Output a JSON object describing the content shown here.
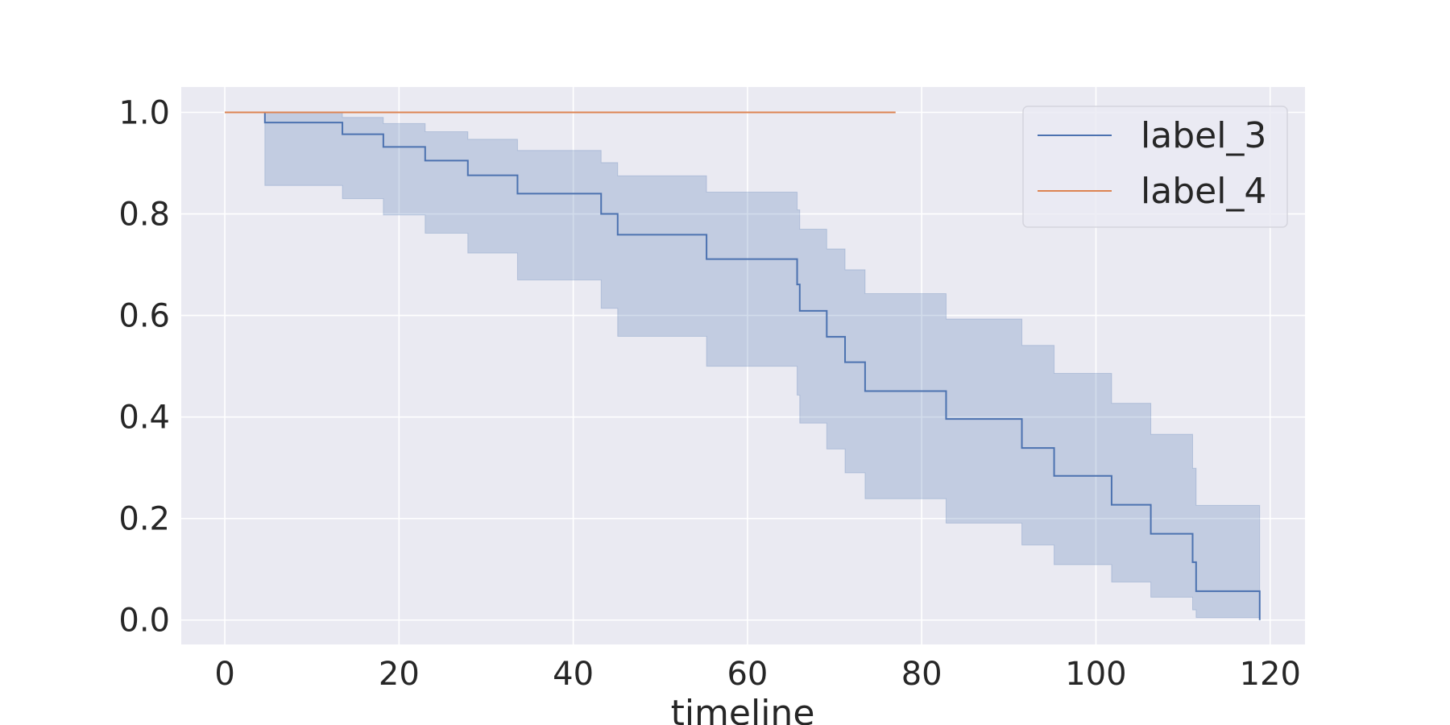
{
  "chart_data": {
    "type": "line",
    "subtype": "kaplan-meier step survival curve with confidence band",
    "title": "",
    "xlabel": "timeline",
    "ylabel": "",
    "xlim": [
      -5,
      124
    ],
    "ylim": [
      -0.048,
      1.05
    ],
    "x_ticks": [
      0,
      20,
      40,
      60,
      80,
      100,
      120
    ],
    "y_ticks": [
      0.0,
      0.2,
      0.4,
      0.6,
      0.8,
      1.0
    ],
    "y_tick_labels": [
      "0.0",
      "0.2",
      "0.4",
      "0.6",
      "0.8",
      "1.0"
    ],
    "grid": true,
    "legend_position": "top-right",
    "colors": {
      "background": "#eaeaf2",
      "grid": "#ffffff",
      "label_3": "#4c72b0",
      "label_4": "#dd8452"
    },
    "series": [
      {
        "name": "label_3",
        "drawstyle": "steps-post",
        "x": [
          0,
          4.6,
          13.5,
          18.2,
          23.0,
          27.9,
          33.6,
          43.2,
          45.1,
          55.3,
          65.7,
          66.0,
          69.1,
          71.2,
          73.5,
          82.8,
          91.5,
          95.2,
          101.8,
          106.3,
          111.1,
          111.5,
          118.8
        ],
        "y": [
          1.0,
          0.98,
          0.957,
          0.932,
          0.905,
          0.876,
          0.84,
          0.8,
          0.759,
          0.711,
          0.661,
          0.609,
          0.558,
          0.508,
          0.451,
          0.396,
          0.339,
          0.284,
          0.227,
          0.17,
          0.114,
          0.057,
          0.0
        ],
        "ci_upper": [
          1.0,
          1.0,
          0.99,
          0.978,
          0.962,
          0.947,
          0.925,
          0.901,
          0.875,
          0.843,
          0.808,
          0.77,
          0.731,
          0.69,
          0.643,
          0.593,
          0.541,
          0.486,
          0.427,
          0.366,
          0.299,
          0.226,
          0.226
        ],
        "ci_lower": [
          1.0,
          0.856,
          0.83,
          0.798,
          0.762,
          0.723,
          0.67,
          0.614,
          0.559,
          0.5,
          0.443,
          0.388,
          0.337,
          0.29,
          0.239,
          0.191,
          0.148,
          0.109,
          0.075,
          0.045,
          0.02,
          0.005,
          0.005
        ]
      },
      {
        "name": "label_4",
        "drawstyle": "steps-post",
        "x": [
          0,
          77
        ],
        "y": [
          1.0,
          1.0
        ]
      }
    ]
  }
}
